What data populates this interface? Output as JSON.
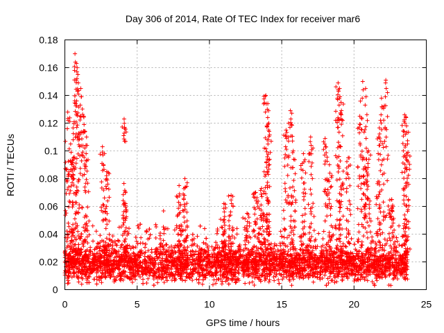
{
  "chart_data": {
    "type": "scatter",
    "title": "Day 306 of 2014, Rate Of TEC Index for receiver mar6",
    "xlabel": "GPS time / hours",
    "ylabel": "ROTI / TECUs",
    "xlim": [
      0,
      25
    ],
    "ylim": [
      0,
      0.18
    ],
    "x_ticks": [
      0,
      5,
      10,
      15,
      20,
      25
    ],
    "x_tick_labels": [
      "0",
      "5",
      "10",
      "15",
      "20",
      "25"
    ],
    "y_ticks": [
      0,
      0.02,
      0.04,
      0.06,
      0.08,
      0.1,
      0.12,
      0.14,
      0.16,
      0.18
    ],
    "y_tick_labels": [
      "0",
      "0.02",
      "0.04",
      "0.06",
      "0.08",
      "0.1",
      "0.12",
      "0.14",
      "0.16",
      "0.18"
    ],
    "grid": true,
    "marker": "+",
    "color": "#ff0000",
    "series": [
      {
        "name": "ROTI",
        "data_range_hours": [
          0,
          23.7
        ],
        "baseline": 0.018,
        "spread": 0.012,
        "background_points": 4200,
        "peaks": [
          {
            "x": 0.2,
            "y": 0.128
          },
          {
            "x": 0.4,
            "y": 0.105
          },
          {
            "x": 0.6,
            "y": 0.095
          },
          {
            "x": 0.7,
            "y": 0.17
          },
          {
            "x": 0.8,
            "y": 0.163
          },
          {
            "x": 0.9,
            "y": 0.155
          },
          {
            "x": 1.1,
            "y": 0.145
          },
          {
            "x": 1.3,
            "y": 0.125
          },
          {
            "x": 1.5,
            "y": 0.11
          },
          {
            "x": 2.6,
            "y": 0.103
          },
          {
            "x": 2.9,
            "y": 0.085
          },
          {
            "x": 4.1,
            "y": 0.123
          },
          {
            "x": 4.2,
            "y": 0.062
          },
          {
            "x": 7.9,
            "y": 0.075
          },
          {
            "x": 8.3,
            "y": 0.08
          },
          {
            "x": 11.0,
            "y": 0.062
          },
          {
            "x": 11.5,
            "y": 0.068
          },
          {
            "x": 12.6,
            "y": 0.055
          },
          {
            "x": 13.2,
            "y": 0.07
          },
          {
            "x": 13.6,
            "y": 0.073
          },
          {
            "x": 13.9,
            "y": 0.14
          },
          {
            "x": 14.0,
            "y": 0.13
          },
          {
            "x": 14.1,
            "y": 0.12
          },
          {
            "x": 15.3,
            "y": 0.115
          },
          {
            "x": 15.6,
            "y": 0.129
          },
          {
            "x": 15.8,
            "y": 0.1
          },
          {
            "x": 16.5,
            "y": 0.098
          },
          {
            "x": 17.0,
            "y": 0.11
          },
          {
            "x": 18.0,
            "y": 0.109
          },
          {
            "x": 18.3,
            "y": 0.09
          },
          {
            "x": 18.9,
            "y": 0.149
          },
          {
            "x": 19.0,
            "y": 0.145
          },
          {
            "x": 19.1,
            "y": 0.135
          },
          {
            "x": 19.6,
            "y": 0.095
          },
          {
            "x": 20.4,
            "y": 0.125
          },
          {
            "x": 20.6,
            "y": 0.15
          },
          {
            "x": 20.8,
            "y": 0.145
          },
          {
            "x": 21.0,
            "y": 0.1
          },
          {
            "x": 21.7,
            "y": 0.11
          },
          {
            "x": 21.9,
            "y": 0.138
          },
          {
            "x": 22.2,
            "y": 0.151
          },
          {
            "x": 22.6,
            "y": 0.065
          },
          {
            "x": 23.5,
            "y": 0.126
          },
          {
            "x": 23.6,
            "y": 0.124
          },
          {
            "x": 23.7,
            "y": 0.105
          }
        ]
      }
    ]
  }
}
